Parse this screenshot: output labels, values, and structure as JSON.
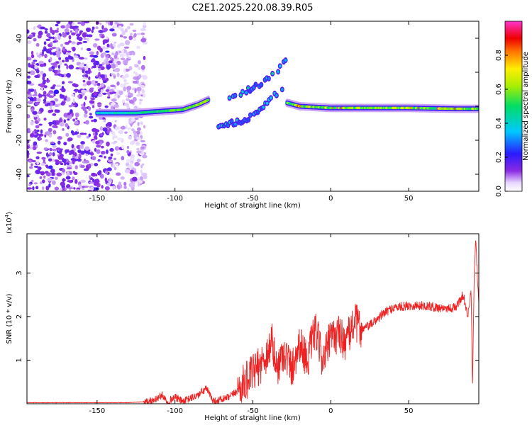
{
  "title": "C2E1.2025.220.08.39.R05",
  "chart_data": [
    {
      "type": "heatmap",
      "xlabel": "Height of straight line (km)",
      "ylabel": "Frequency (Hz)",
      "xlim": [
        -195,
        95
      ],
      "ylim": [
        -50,
        50
      ],
      "xticks": [
        -150,
        -100,
        -50,
        0,
        50
      ],
      "yticks": [
        -40,
        -20,
        0,
        20,
        40
      ],
      "colorbar": {
        "label": "Normalized spectral amplitude",
        "range": [
          0,
          1
        ],
        "ticks": [
          "0.0",
          "0.2",
          "0.4",
          "0.6",
          "0.8"
        ]
      },
      "features": {
        "noise_region_x": [
          -195,
          -125
        ],
        "main_trace": {
          "segments": [
            {
              "x": [
                -150,
                -125,
                -110,
                -95,
                -85,
                -78
              ],
              "freq": [
                -4,
                -4,
                -3,
                -2,
                1,
                4
              ]
            },
            {
              "x": [
                -28,
                -20,
                0,
                20,
                50,
                80,
                95
              ],
              "freq": [
                2,
                0,
                -1,
                -1,
                -1,
                -1.5,
                -1.5
              ]
            }
          ],
          "peak_amplitude": 0.95
        },
        "secondary_branch": {
          "x": [
            -72,
            -55,
            -40,
            -30
          ],
          "freq": [
            -12,
            -8,
            2,
            12
          ]
        },
        "upper_branch": {
          "x": [
            -65,
            -45,
            -35,
            -28
          ],
          "freq": [
            5,
            13,
            20,
            27
          ]
        }
      }
    },
    {
      "type": "line",
      "xlabel": "Height of straight line (km)",
      "ylabel": "SNR (10 * v/v)",
      "multiplier_label": "(x10",
      "multiplier_exp": "4",
      "xlim": [
        -195,
        95
      ],
      "ylim": [
        0,
        3.9
      ],
      "xticks": [
        -150,
        -100,
        -50,
        0,
        50
      ],
      "yticks": [
        1,
        2,
        3
      ],
      "series": [
        {
          "color": "#ee2222",
          "x": [
            -195,
            -130,
            -115,
            -108,
            -105,
            -100,
            -95,
            -85,
            -80,
            -75,
            -65,
            -60,
            -55,
            -50,
            -45,
            -40,
            -38,
            -35,
            -30,
            -25,
            -20,
            -15,
            -10,
            -5,
            0,
            5,
            10,
            15,
            20,
            25,
            30,
            35,
            40,
            50,
            60,
            70,
            80,
            85,
            88,
            90,
            91,
            92,
            93,
            95
          ],
          "y": [
            0.02,
            0.02,
            0.05,
            0.2,
            0.05,
            0.15,
            0.05,
            0.2,
            0.35,
            0.05,
            0.15,
            0.3,
            0.5,
            0.7,
            0.9,
            1.2,
            1.5,
            0.8,
            1.2,
            0.8,
            1.4,
            1.0,
            1.7,
            1.0,
            1.5,
            1.6,
            1.4,
            1.9,
            1.7,
            1.8,
            1.95,
            2.1,
            2.2,
            2.25,
            2.25,
            2.2,
            2.2,
            2.5,
            2.0,
            2.6,
            0.4,
            2.8,
            3.8,
            2.2
          ]
        }
      ]
    }
  ]
}
